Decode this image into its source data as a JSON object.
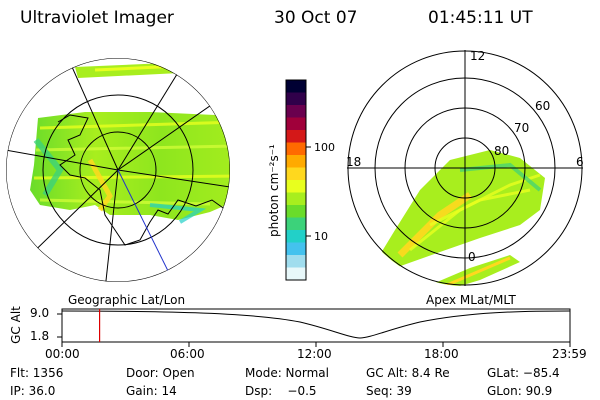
{
  "header": {
    "instrument": "Ultraviolet Imager",
    "date": "30 Oct 07",
    "time": "01:45:11 UT"
  },
  "left_panel": {
    "caption": "Geographic Lat/Lon"
  },
  "right_panel": {
    "caption": "Apex MLat/MLT",
    "latitude_labels": [
      "80",
      "70",
      "60"
    ],
    "mlt_labels": {
      "top": "12",
      "right": "6",
      "left": "18",
      "bottom": "0"
    }
  },
  "colorbar": {
    "unit_label": "photon cm⁻²s⁻¹",
    "tick_labels": [
      "100",
      "10"
    ],
    "colors": [
      "#000033",
      "#30004a",
      "#6a004e",
      "#a0003a",
      "#d41818",
      "#ff6a00",
      "#ffaa00",
      "#ffd81e",
      "#e8ff1e",
      "#a8ee1e",
      "#6adc2a",
      "#3cd27a",
      "#22d0c8",
      "#44c2ee",
      "#a0ddee",
      "#e8f8fa"
    ]
  },
  "altitude_plot": {
    "ylabel": "GC Alt",
    "y_ticks": [
      "9.0",
      "1.8"
    ],
    "x_ticks": [
      "00:00",
      "06:00",
      "12:00",
      "18:00",
      "23:59"
    ],
    "current_time_fraction": 0.074,
    "marker_color": "#dd0000"
  },
  "info": {
    "flt": "Flt: 1356",
    "door": "Door: Open",
    "mode": "Mode: Normal",
    "gc_alt": "GC Alt: 8.4 Re",
    "glat": "GLat: −85.4",
    "ip": "IP: 36.0",
    "gain": "Gain: 14",
    "dsp": "Dsp:    −0.5",
    "seq": "Seq: 39",
    "glon": "GLon: 90.9"
  }
}
